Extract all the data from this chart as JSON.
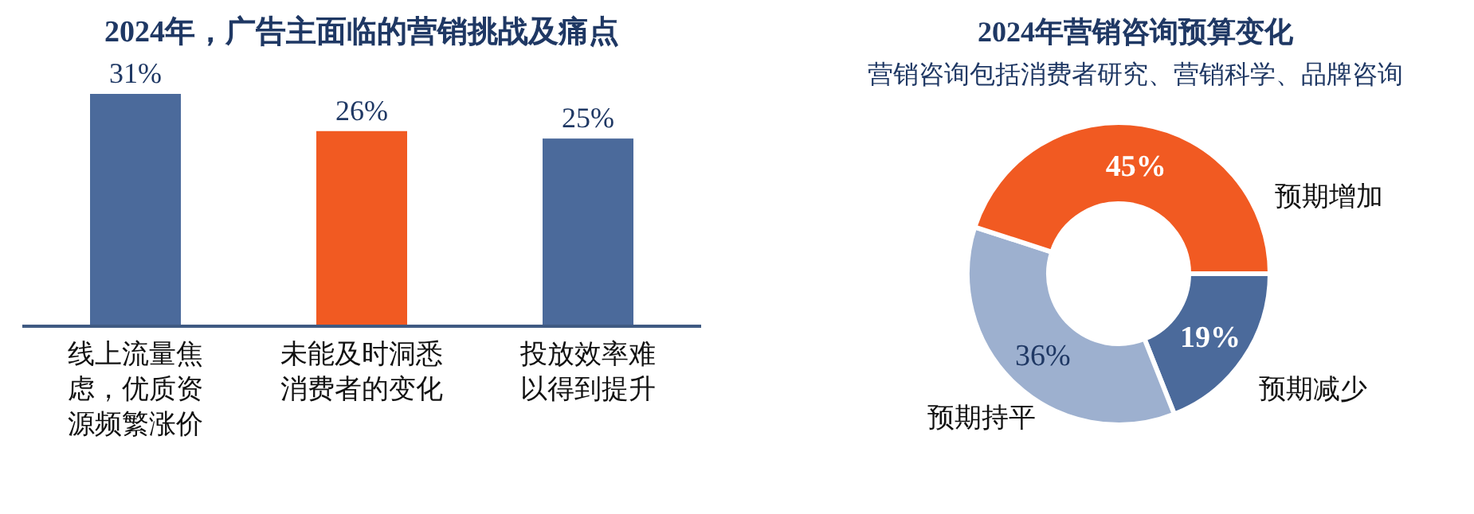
{
  "chart_data": [
    {
      "type": "bar",
      "title": "2024年，广告主面临的营销挑战及痛点",
      "categories": [
        "线上流量焦虑，优质资源频繁涨价",
        "未能及时洞悉消费者的变化",
        "投放效率难以得到提升"
      ],
      "values": [
        31,
        26,
        25
      ],
      "colors": [
        "#4b6a9b",
        "#f15a22",
        "#4b6a9b"
      ],
      "value_labels": [
        "31%",
        "26%",
        "25%"
      ]
    },
    {
      "type": "donut",
      "title": "2024年营销咨询预算变化",
      "subtitle": "营销咨询包括消费者研究、营销科学、品牌咨询",
      "categories": [
        "预期减少",
        "预期持平",
        "预期增加"
      ],
      "values": [
        19,
        36,
        45
      ],
      "colors": [
        "#4b6a9b",
        "#9db0cf",
        "#f15a22"
      ],
      "value_labels": [
        "19%",
        "36%",
        "45%"
      ]
    }
  ]
}
